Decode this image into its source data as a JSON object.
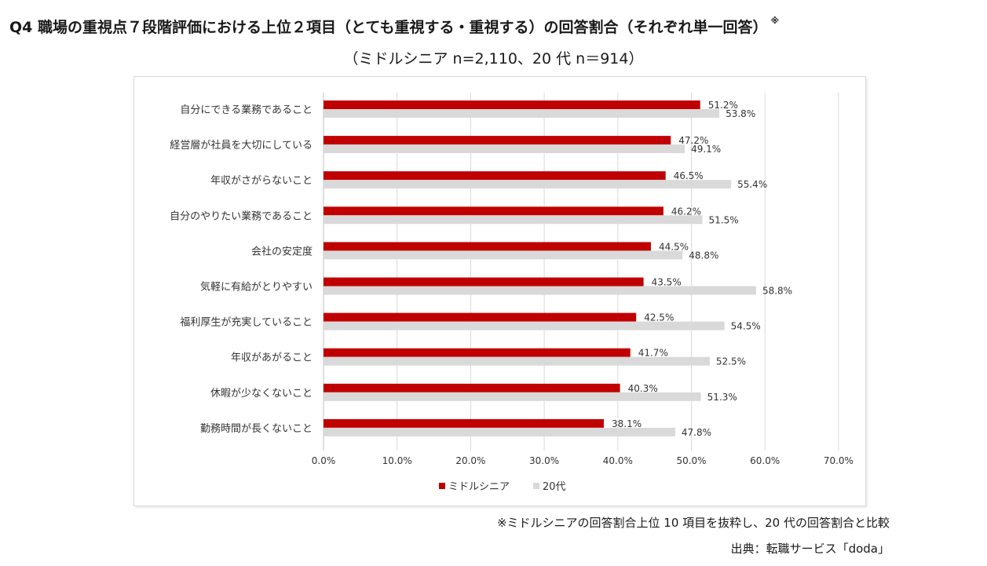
{
  "header": {
    "title": "Q4  職場の重視点７段階評価における上位２項目（とても重視する・重視する）の回答割合（それぞれ単一回答）",
    "title_mark": "※",
    "subtitle": "（ミドルシニア n=2,110、20 代 n＝914）"
  },
  "footer": {
    "note": "※ミドルシニアの回答割合上位 10 項目を抜粋し、20 代の回答割合と比較",
    "source": "出典：転職サービス「doda」"
  },
  "chart_data": {
    "type": "bar",
    "orientation": "horizontal",
    "categories": [
      "自分にできる業務であること",
      "経営層が社員を大切にしている",
      "年収がさがらないこと",
      "自分のやりたい業務であること",
      "会社の安定度",
      "気軽に有給がとりやすい",
      "福利厚生が充実していること",
      "年収があがること",
      "休暇が少なくないこと",
      "勤務時間が長くないこと"
    ],
    "series": [
      {
        "name": "ミドルシニア",
        "color": "#c00000",
        "values": [
          51.2,
          47.2,
          46.5,
          46.2,
          44.5,
          43.5,
          42.5,
          41.7,
          40.3,
          38.1
        ]
      },
      {
        "name": "20代",
        "color": "#d9d9d9",
        "values": [
          53.8,
          49.1,
          55.4,
          51.5,
          48.8,
          58.8,
          54.5,
          52.5,
          51.3,
          47.8
        ]
      }
    ],
    "xlim": [
      0,
      70
    ],
    "xticks": [
      "0.0%",
      "10.0%",
      "20.0%",
      "30.0%",
      "40.0%",
      "50.0%",
      "60.0%",
      "70.0%"
    ],
    "grid": true,
    "legend_position": "bottom"
  }
}
